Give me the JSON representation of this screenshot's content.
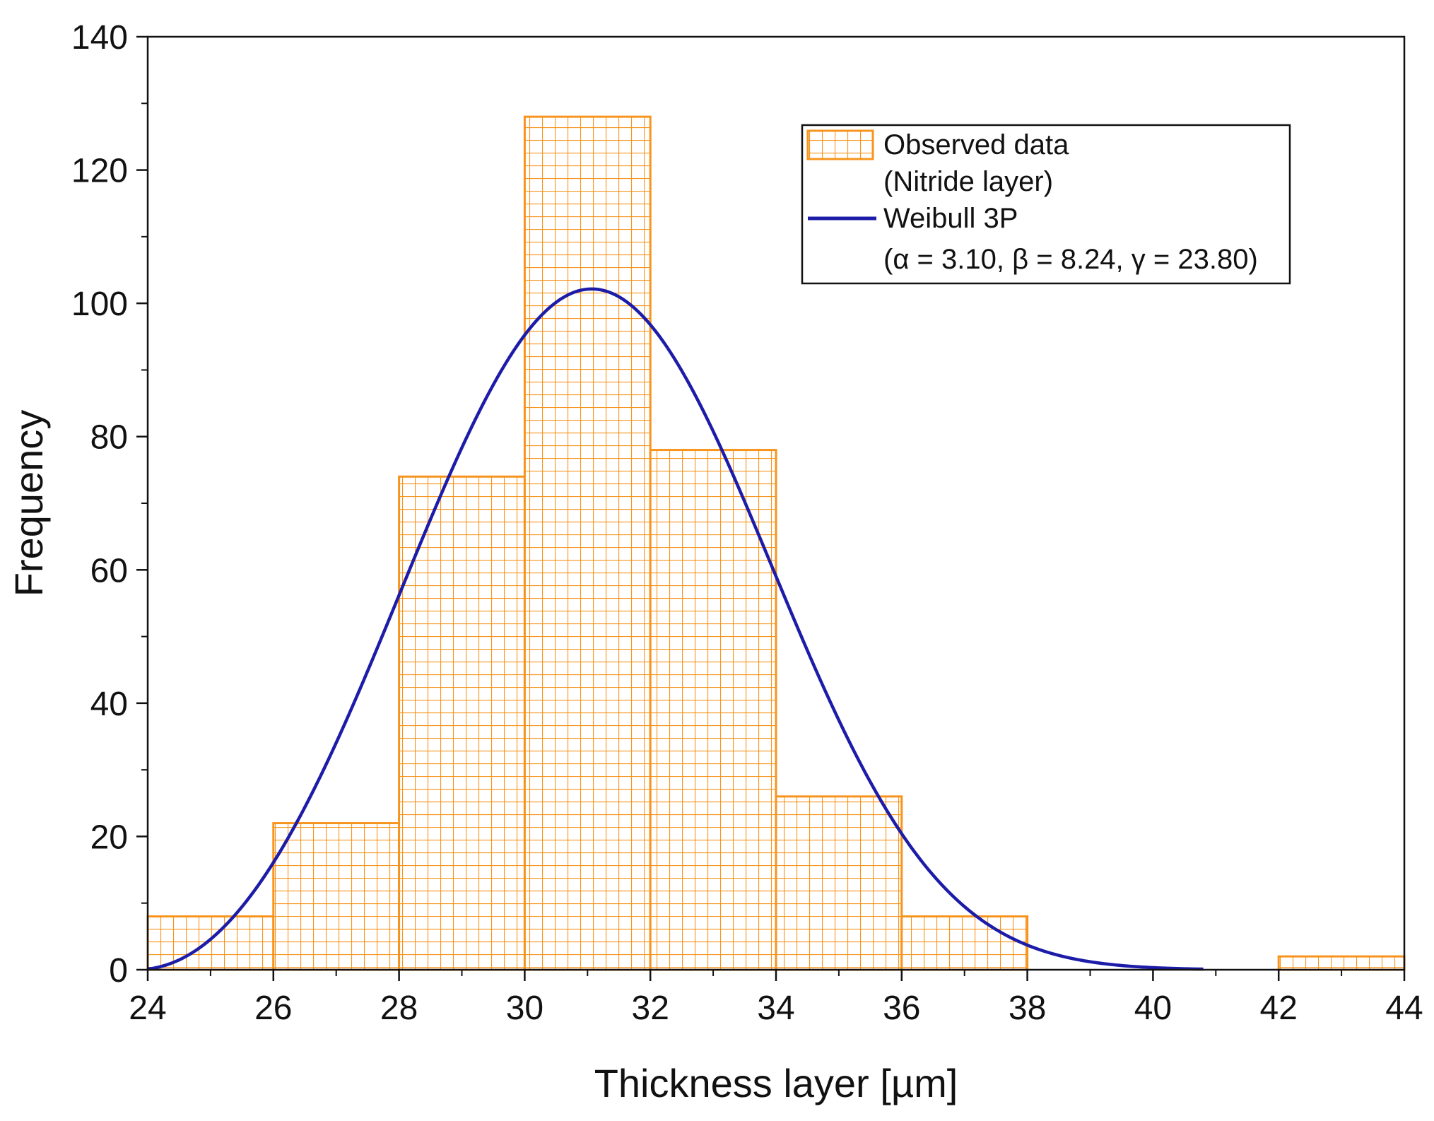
{
  "chart_data": {
    "type": "bar",
    "xlabel": "Thickness layer [µm]",
    "ylabel": "Frequency",
    "xlim": [
      24,
      44
    ],
    "ylim": [
      0,
      140
    ],
    "x_ticks": [
      "24",
      "26",
      "28",
      "30",
      "32",
      "34",
      "36",
      "38",
      "40",
      "42",
      "44"
    ],
    "y_ticks": [
      "0",
      "20",
      "40",
      "60",
      "80",
      "100",
      "120",
      "140"
    ],
    "histogram": {
      "name": "Observed data (Nitride layer)",
      "bins": [
        {
          "start": 24,
          "end": 26,
          "value": 8
        },
        {
          "start": 26,
          "end": 28,
          "value": 22
        },
        {
          "start": 28,
          "end": 30,
          "value": 74
        },
        {
          "start": 30,
          "end": 32,
          "value": 128
        },
        {
          "start": 32,
          "end": 34,
          "value": 78
        },
        {
          "start": 34,
          "end": 36,
          "value": 26
        },
        {
          "start": 36,
          "end": 38,
          "value": 8
        },
        {
          "start": 38,
          "end": 40,
          "value": 0
        },
        {
          "start": 40,
          "end": 42,
          "value": 0
        },
        {
          "start": 42,
          "end": 44,
          "value": 2
        }
      ],
      "color": "#f7941d"
    },
    "fit": {
      "name": "Weibull 3P",
      "alpha": 3.1,
      "beta": 8.24,
      "gamma": 23.8,
      "scale_total": 348,
      "x_end": 40.8,
      "color": "#1c1ca8"
    },
    "legend": {
      "entries": [
        {
          "line1": "Observed data",
          "line2": "(Nitride layer)"
        },
        {
          "line1": "Weibull 3P",
          "line2": "(α = 3.10, β = 8.24, γ = 23.80)"
        }
      ],
      "placement": "top-right"
    }
  }
}
